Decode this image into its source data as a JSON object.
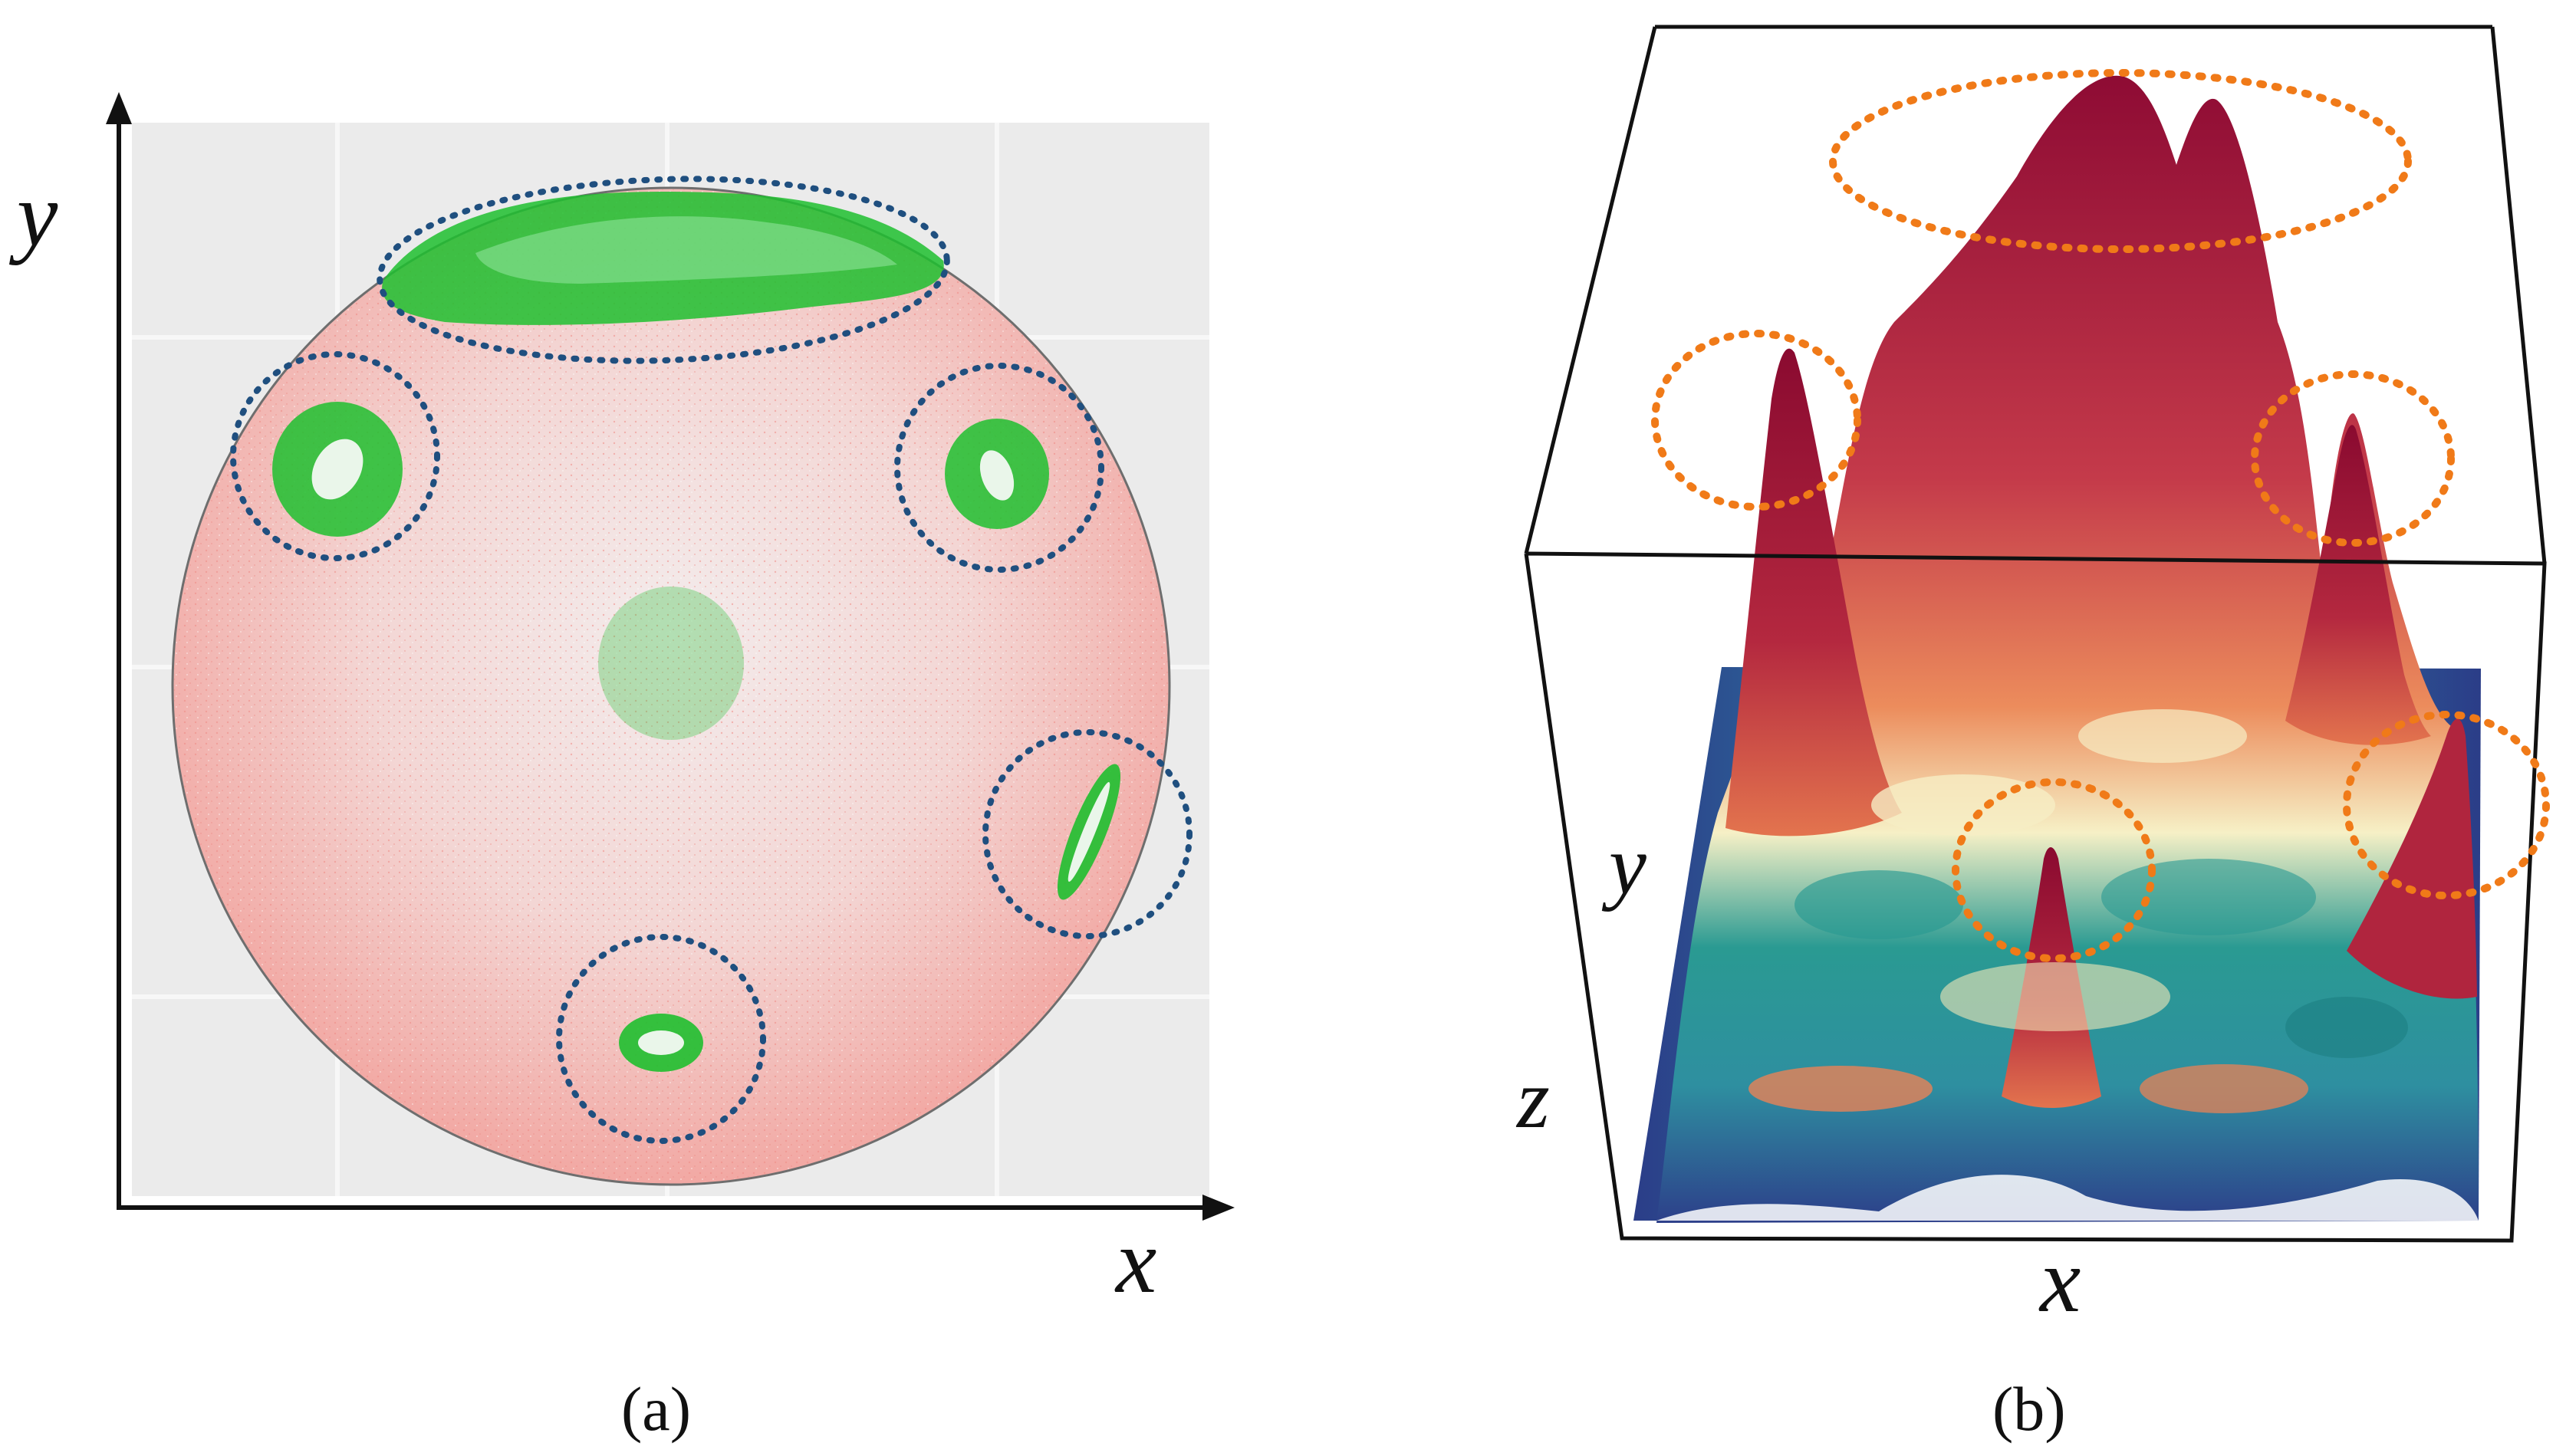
{
  "panel_a": {
    "x_label": "x",
    "y_label": "y",
    "caption": "(a)",
    "colors": {
      "background": "#ebebeb",
      "grid": "#f7f7f7",
      "disk": "#f2c6c4",
      "disk_edge": "#ef8f8a",
      "green": "#1fbf2f",
      "ellipse": "#1f4f7f"
    }
  },
  "panel_b": {
    "x_label": "x",
    "y_label": "y",
    "z_label": "z",
    "caption": "(b)",
    "colors": {
      "peak": "#9a0f3a",
      "mid": "#e8784a",
      "pale": "#f4f1c8",
      "teal": "#1e8a86",
      "base": "#2c4a8c",
      "ellipse": "#f07a18"
    }
  }
}
